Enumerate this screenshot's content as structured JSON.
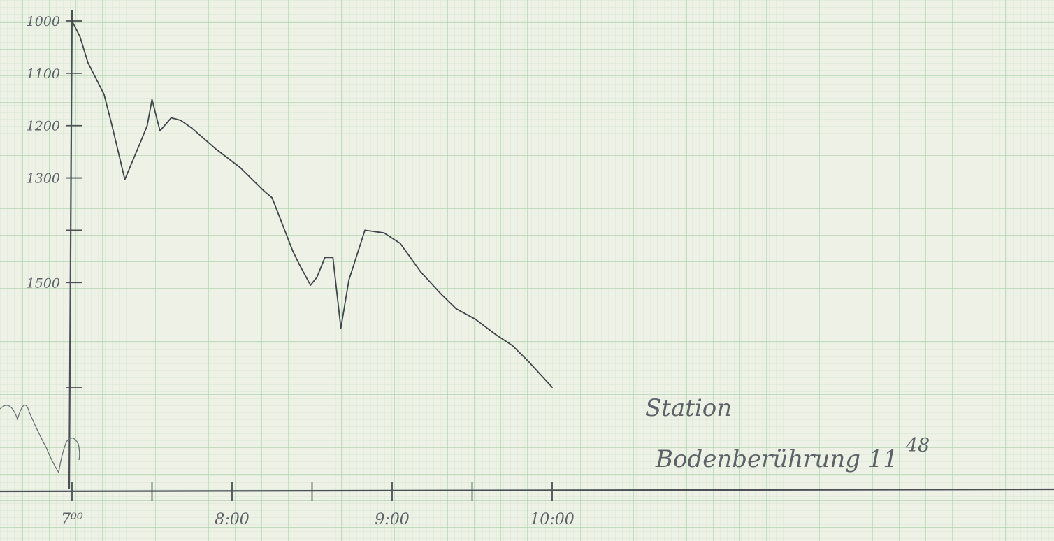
{
  "chart_data": {
    "type": "line",
    "title": "",
    "xlabel": "",
    "ylabel": "",
    "x_unit": "hours",
    "xlim": [
      7.0,
      10.0
    ],
    "ylim": [
      1000,
      1700
    ],
    "y_inverted": true,
    "x_ticks": [
      {
        "value": 7.0,
        "label": "7⁰⁰"
      },
      {
        "value": 7.5,
        "label": ""
      },
      {
        "value": 8.0,
        "label": "8:00"
      },
      {
        "value": 8.5,
        "label": ""
      },
      {
        "value": 9.0,
        "label": "9:00"
      },
      {
        "value": 9.5,
        "label": ""
      },
      {
        "value": 10.0,
        "label": "10:00"
      }
    ],
    "y_ticks": [
      {
        "value": 1000,
        "label": "1000"
      },
      {
        "value": 1100,
        "label": "1100"
      },
      {
        "value": 1200,
        "label": "1200"
      },
      {
        "value": 1300,
        "label": "1300"
      },
      {
        "value": 1400,
        "label": ""
      },
      {
        "value": 1500,
        "label": "1500"
      },
      {
        "value": 1700,
        "label": ""
      }
    ],
    "grid": true,
    "series": [
      {
        "name": "",
        "x": [
          7.0,
          7.05,
          7.1,
          7.2,
          7.25,
          7.33,
          7.43,
          7.47,
          7.5,
          7.55,
          7.62,
          7.68,
          7.75,
          7.9,
          8.05,
          8.2,
          8.25,
          8.38,
          8.42,
          8.49,
          8.53,
          8.58,
          8.63,
          8.68,
          8.73,
          8.83,
          8.95,
          9.05,
          9.18,
          9.3,
          9.4,
          9.52,
          9.65,
          9.75,
          9.85,
          10.0
        ],
        "y": [
          1000,
          1030,
          1080,
          1140,
          1200,
          1303,
          1230,
          1200,
          1150,
          1210,
          1185,
          1190,
          1205,
          1245,
          1280,
          1325,
          1338,
          1440,
          1465,
          1505,
          1490,
          1452,
          1452,
          1587,
          1495,
          1400,
          1405,
          1425,
          1480,
          1520,
          1550,
          1570,
          1600,
          1620,
          1650,
          1700
        ]
      }
    ]
  },
  "notes": {
    "line1": "Station",
    "line2_main": "Bodenberührung 11",
    "line2_sup": "48"
  }
}
